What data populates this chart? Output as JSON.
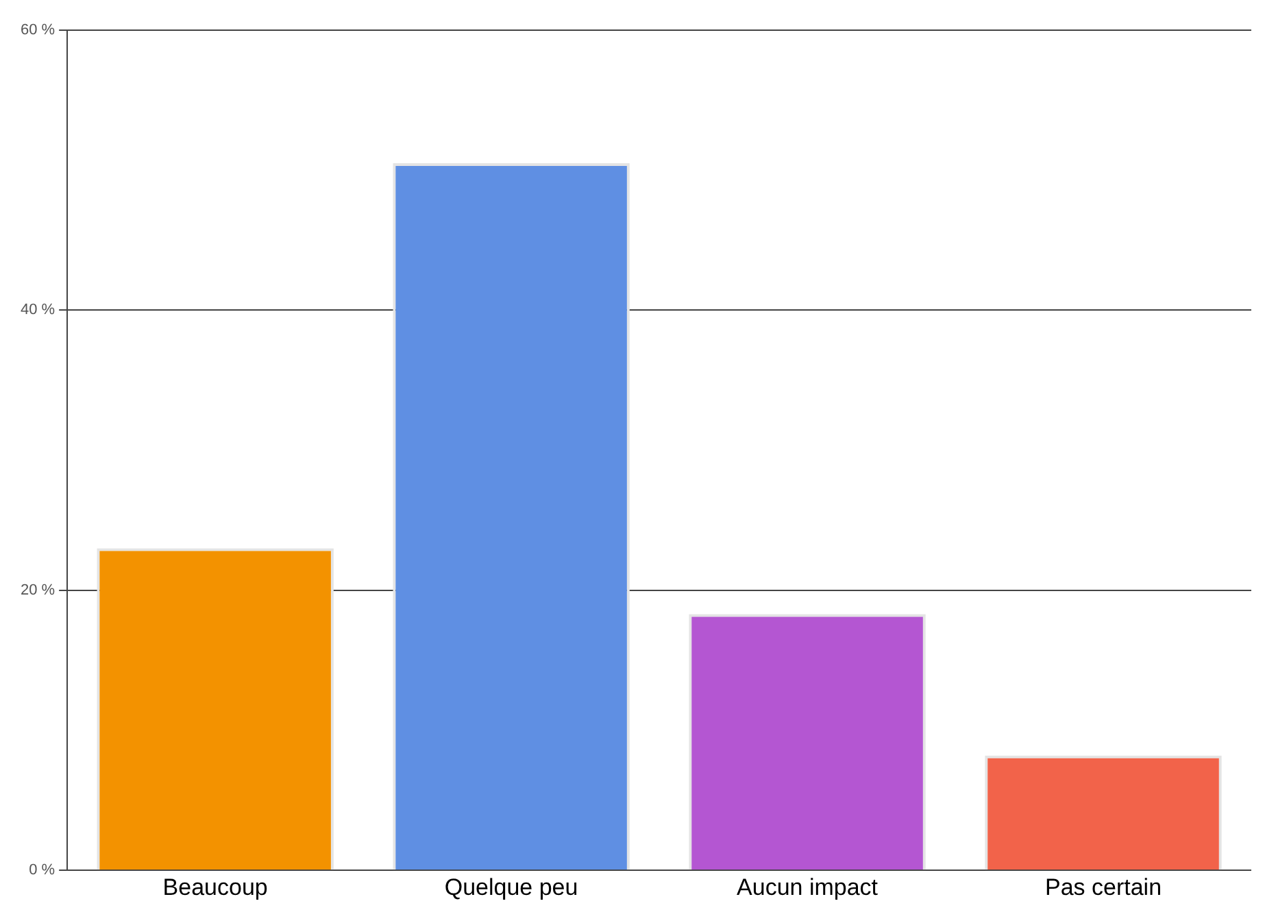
{
  "chart_data": {
    "type": "bar",
    "categories": [
      "Beaucoup",
      "Quelque peu",
      "Aucun impact",
      "Pas certain"
    ],
    "values": [
      23,
      50.5,
      18.3,
      8.2
    ],
    "colors": [
      "#f39200",
      "#5f8fe3",
      "#b456d2",
      "#f2634a"
    ],
    "ylim": [
      0,
      60
    ],
    "yticks": [
      {
        "value": 0,
        "label": "0 %"
      },
      {
        "value": 20,
        "label": "20 %"
      },
      {
        "value": 40,
        "label": "40 %"
      },
      {
        "value": 60,
        "label": "60 %"
      }
    ],
    "grid": "y",
    "legend": false
  }
}
